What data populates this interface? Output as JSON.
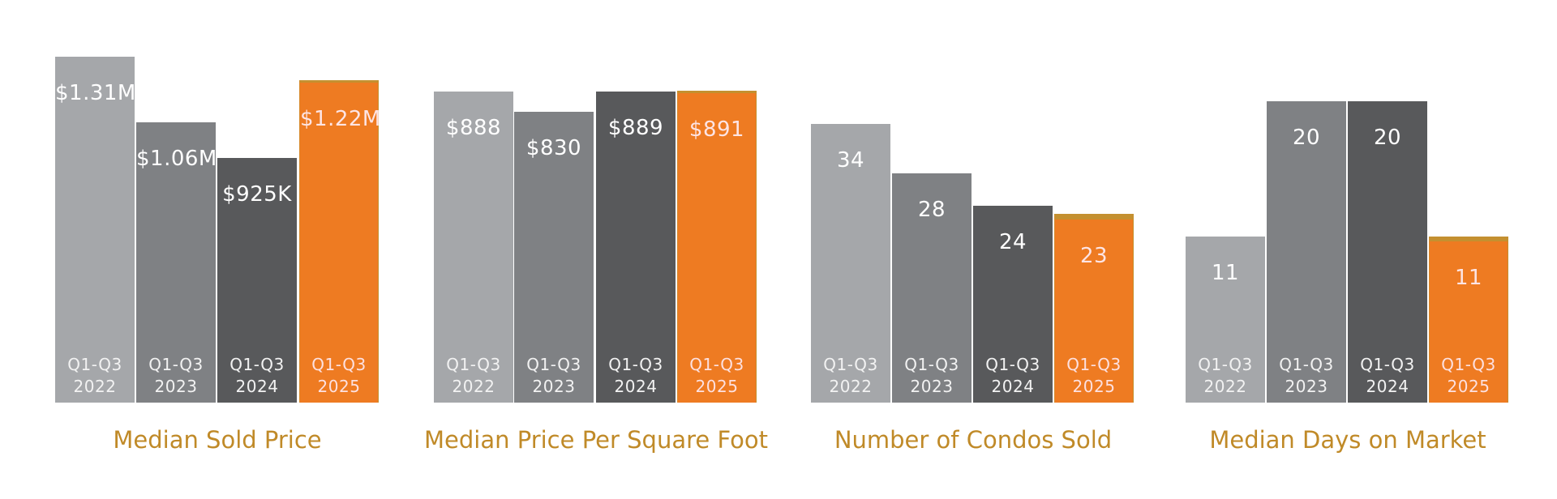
{
  "colors": {
    "year_2022": "#a5a7aa",
    "year_2023": "#7f8184",
    "year_2024": "#58595b",
    "year_2025": "#ee7b22",
    "title": "#c08a28"
  },
  "chart_data": [
    {
      "type": "bar",
      "title": "Median Sold Price",
      "categories": [
        "Q1-Q3 2022",
        "Q1-Q3 2023",
        "Q1-Q3 2024",
        "Q1-Q3 2025"
      ],
      "period_labels": [
        {
          "line1": "Q1-Q3",
          "line2": "2022"
        },
        {
          "line1": "Q1-Q3",
          "line2": "2023"
        },
        {
          "line1": "Q1-Q3",
          "line2": "2024"
        },
        {
          "line1": "Q1-Q3",
          "line2": "2025"
        }
      ],
      "values": [
        1310000,
        1060000,
        925000,
        1220000
      ],
      "data_labels": [
        "$1.31M",
        "$1.06M",
        "$925K",
        "$1.22M"
      ],
      "xlabel": "",
      "ylabel": "",
      "ylim": [
        0,
        1310000
      ]
    },
    {
      "type": "bar",
      "title": "Median Price Per Square Foot",
      "categories": [
        "Q1-Q3 2022",
        "Q1-Q3 2023",
        "Q1-Q3 2024",
        "Q1-Q3 2025"
      ],
      "period_labels": [
        {
          "line1": "Q1-Q3",
          "line2": "2022"
        },
        {
          "line1": "Q1-Q3",
          "line2": "2023"
        },
        {
          "line1": "Q1-Q3",
          "line2": "2024"
        },
        {
          "line1": "Q1-Q3",
          "line2": "2025"
        }
      ],
      "values": [
        888,
        830,
        889,
        891
      ],
      "data_labels": [
        "$888",
        "$830",
        "$889",
        "$891"
      ],
      "xlabel": "",
      "ylabel": "",
      "ylim": [
        0,
        891
      ]
    },
    {
      "type": "bar",
      "title": "Number of Condos Sold",
      "categories": [
        "Q1-Q3 2022",
        "Q1-Q3 2023",
        "Q1-Q3 2024",
        "Q1-Q3 2025"
      ],
      "period_labels": [
        {
          "line1": "Q1-Q3",
          "line2": "2022"
        },
        {
          "line1": "Q1-Q3",
          "line2": "2023"
        },
        {
          "line1": "Q1-Q3",
          "line2": "2024"
        },
        {
          "line1": "Q1-Q3",
          "line2": "2025"
        }
      ],
      "values": [
        34,
        28,
        24,
        23
      ],
      "data_labels": [
        "34",
        "28",
        "24",
        "23"
      ],
      "xlabel": "",
      "ylabel": "",
      "ylim": [
        0,
        34
      ]
    },
    {
      "type": "bar",
      "title": "Median Days on Market",
      "categories": [
        "Q1-Q3 2022",
        "Q1-Q3 2023",
        "Q1-Q3 2024",
        "Q1-Q3 2025"
      ],
      "period_labels": [
        {
          "line1": "Q1-Q3",
          "line2": "2022"
        },
        {
          "line1": "Q1-Q3",
          "line2": "2023"
        },
        {
          "line1": "Q1-Q3",
          "line2": "2024"
        },
        {
          "line1": "Q1-Q3",
          "line2": "2025"
        }
      ],
      "values": [
        11,
        20,
        20,
        11
      ],
      "data_labels": [
        "11",
        "20",
        "20",
        "11"
      ],
      "xlabel": "",
      "ylabel": "",
      "ylim": [
        0,
        20
      ]
    }
  ]
}
